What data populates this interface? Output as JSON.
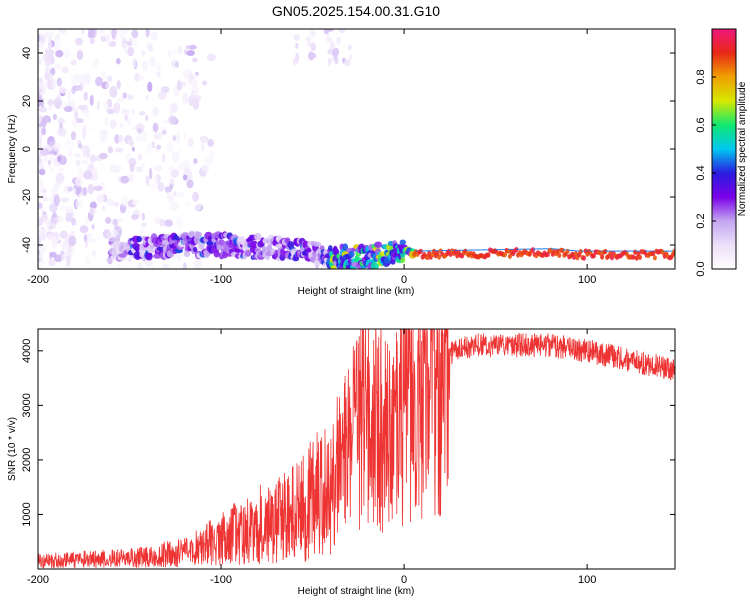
{
  "figure": {
    "title": "GN05.2025.154.00.31.G10"
  },
  "chart_data": [
    {
      "type": "heatmap",
      "xlabel": "Height of straight line (km)",
      "ylabel": "Frequency (Hz)",
      "xlim": [
        -200,
        148
      ],
      "ylim": [
        -50,
        50
      ],
      "xticks": [
        -200,
        -100,
        0,
        100
      ],
      "yticks": [
        -40,
        -20,
        0,
        20,
        40
      ],
      "colorbar": {
        "label": "Normalized spectral amplitude",
        "range": [
          0,
          1
        ],
        "ticks": [
          0.0,
          0.2,
          0.4,
          0.6,
          0.8
        ],
        "tick_labels": [
          "0.0",
          "0.2",
          "0.4",
          "0.6",
          "0.8"
        ],
        "colormap": [
          "#ffffff",
          "#ece0fa",
          "#c4a6f0",
          "#7a00e8",
          "#2a1ce0",
          "#00c8f0",
          "#10e870",
          "#d8e800",
          "#f0a000",
          "#e82818",
          "#f0187a"
        ]
      },
      "ridge": [
        {
          "x": -200,
          "y": -43
        },
        {
          "x": -160,
          "y": -42
        },
        {
          "x": -140,
          "y": -41
        },
        {
          "x": -120,
          "y": -40
        },
        {
          "x": -100,
          "y": -40
        },
        {
          "x": -80,
          "y": -41
        },
        {
          "x": -60,
          "y": -42
        },
        {
          "x": -40,
          "y": -45
        },
        {
          "x": -20,
          "y": -45
        },
        {
          "x": 0,
          "y": -42
        },
        {
          "x": 5,
          "y": -44
        },
        {
          "x": 80,
          "y": -43
        },
        {
          "x": 95,
          "y": -44
        },
        {
          "x": 148,
          "y": -44
        }
      ]
    },
    {
      "type": "line",
      "xlabel": "Height of straight line (km)",
      "ylabel": "SNR (10 * v/v)",
      "xlim": [
        -200,
        148
      ],
      "ylim": [
        0,
        4400
      ],
      "xticks": [
        -200,
        -100,
        0,
        100
      ],
      "yticks": [
        1000,
        2000,
        3000,
        4000
      ],
      "series": [
        {
          "color": "#ee3333",
          "envelope": [
            {
              "x": -200,
              "y": 150
            },
            {
              "x": -150,
              "y": 200
            },
            {
              "x": -120,
              "y": 300
            },
            {
              "x": -100,
              "y": 550
            },
            {
              "x": -80,
              "y": 800
            },
            {
              "x": -60,
              "y": 1000
            },
            {
              "x": -40,
              "y": 1600
            },
            {
              "x": -30,
              "y": 2200
            },
            {
              "x": -20,
              "y": 2800
            },
            {
              "x": -10,
              "y": 2500
            },
            {
              "x": 0,
              "y": 3000
            },
            {
              "x": 10,
              "y": 3400
            },
            {
              "x": 20,
              "y": 3800
            },
            {
              "x": 30,
              "y": 4050
            },
            {
              "x": 40,
              "y": 4100
            },
            {
              "x": 60,
              "y": 4100
            },
            {
              "x": 80,
              "y": 4100
            },
            {
              "x": 100,
              "y": 4000
            },
            {
              "x": 120,
              "y": 3850
            },
            {
              "x": 148,
              "y": 3650
            }
          ]
        }
      ]
    }
  ]
}
